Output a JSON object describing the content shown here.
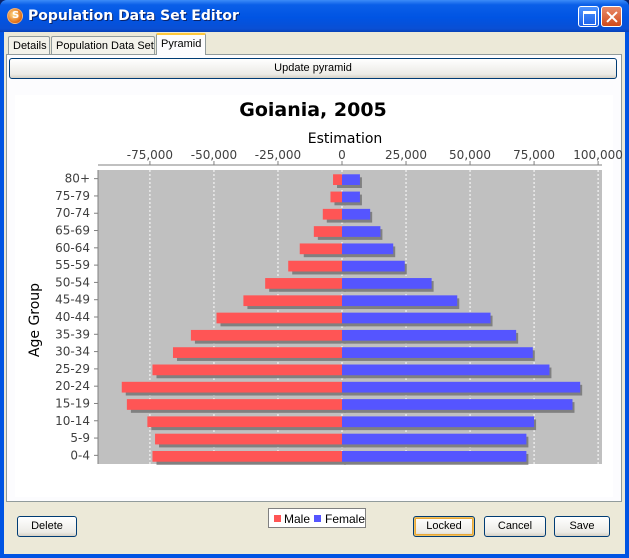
{
  "window": {
    "title": "Population Data Set Editor"
  },
  "tabs": [
    {
      "label": "Details",
      "active": false
    },
    {
      "label": "Population Data Set",
      "active": false
    },
    {
      "label": "Pyramid",
      "active": true
    }
  ],
  "toolbar": {
    "update_label": "Update pyramid"
  },
  "footer": {
    "delete_label": "Delete",
    "locked_label": "Locked",
    "cancel_label": "Cancel",
    "save_label": "Save"
  },
  "colors": {
    "male": "#ff5555",
    "female": "#5555ff",
    "plot_bg": "#c0c0c0",
    "accent": "#0054e3"
  },
  "chart_data": {
    "type": "bar",
    "orientation": "horizontal-pyramid",
    "title": "Goiania, 2005",
    "xlabel": "Estimation",
    "ylabel": "Age Group",
    "xlim": [
      -100000,
      100000
    ],
    "x_ticks": [
      "-75,000",
      "-50,000",
      "-25,000",
      "0",
      "25,000",
      "50,000",
      "75,000",
      "100,000"
    ],
    "x_tick_values": [
      -75000,
      -50000,
      -25000,
      0,
      25000,
      50000,
      75000,
      100000
    ],
    "legend_position": "bottom",
    "categories": [
      "80+",
      "75-79",
      "70-74",
      "65-69",
      "60-64",
      "55-59",
      "50-54",
      "45-49",
      "40-44",
      "35-39",
      "30-34",
      "25-29",
      "20-24",
      "15-19",
      "10-14",
      "5-9",
      "0-4"
    ],
    "series": [
      {
        "name": "Male",
        "values": [
          -3500,
          -4500,
          -7500,
          -11000,
          -16500,
          -21000,
          -30000,
          -38500,
          -49000,
          -59000,
          -66000,
          -74000,
          -86000,
          -84000,
          -76000,
          -73000,
          -74000
        ]
      },
      {
        "name": "Female",
        "values": [
          7000,
          7000,
          11000,
          15000,
          20000,
          24500,
          35000,
          45000,
          58000,
          68000,
          74500,
          81000,
          93000,
          90000,
          75000,
          72000,
          72000
        ]
      }
    ]
  }
}
